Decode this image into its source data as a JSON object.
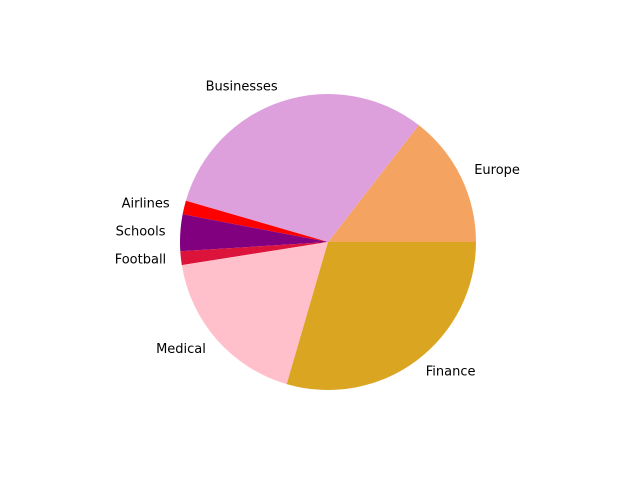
{
  "chart_data": {
    "type": "pie",
    "start_angle_deg": 0,
    "direction": "counterclockwise",
    "legend": "none",
    "slices": [
      {
        "label": "Europe",
        "value": 14.5,
        "color": "#F4A460"
      },
      {
        "label": "Businesses",
        "value": 31.0,
        "color": "#DDA0DD"
      },
      {
        "label": "Airlines",
        "value": 1.5,
        "color": "#FF0000"
      },
      {
        "label": "Schools",
        "value": 4.0,
        "color": "#800080"
      },
      {
        "label": "Football",
        "value": 1.5,
        "color": "#DC143C"
      },
      {
        "label": "Medical",
        "value": 18.0,
        "color": "#FFC0CB"
      },
      {
        "label": "Finance",
        "value": 29.5,
        "color": "#DAA520"
      }
    ]
  }
}
